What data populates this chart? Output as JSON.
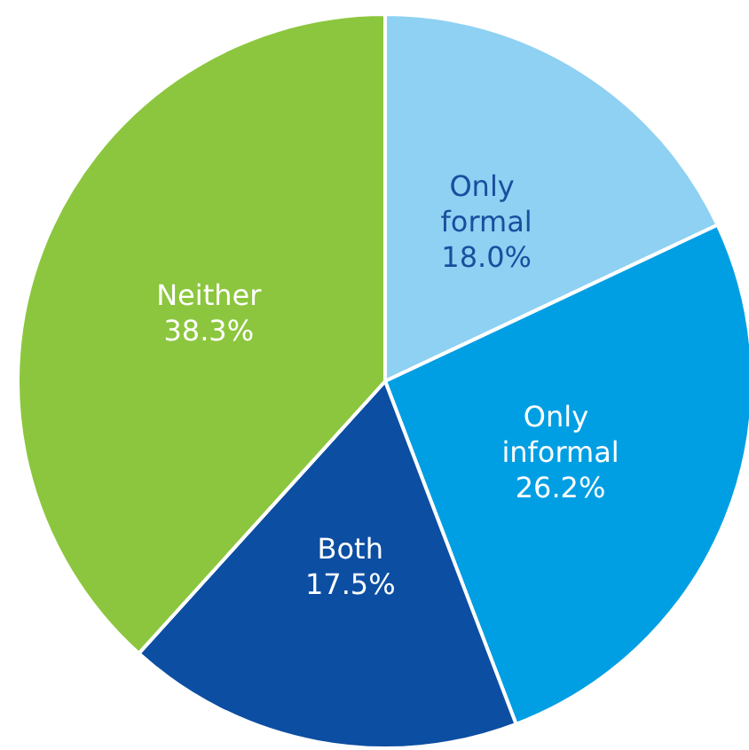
{
  "chart_data": {
    "type": "pie",
    "categories": [
      "Only formal",
      "Only informal",
      "Both",
      "Neither"
    ],
    "values": [
      18.0,
      26.2,
      17.5,
      38.3
    ],
    "colors": [
      "#8ed1f2",
      "#009fe3",
      "#0c4ea2",
      "#8cc63e"
    ],
    "value_labels": [
      "18.0%",
      "26.2%",
      "17.5%",
      "38.3%"
    ]
  }
}
